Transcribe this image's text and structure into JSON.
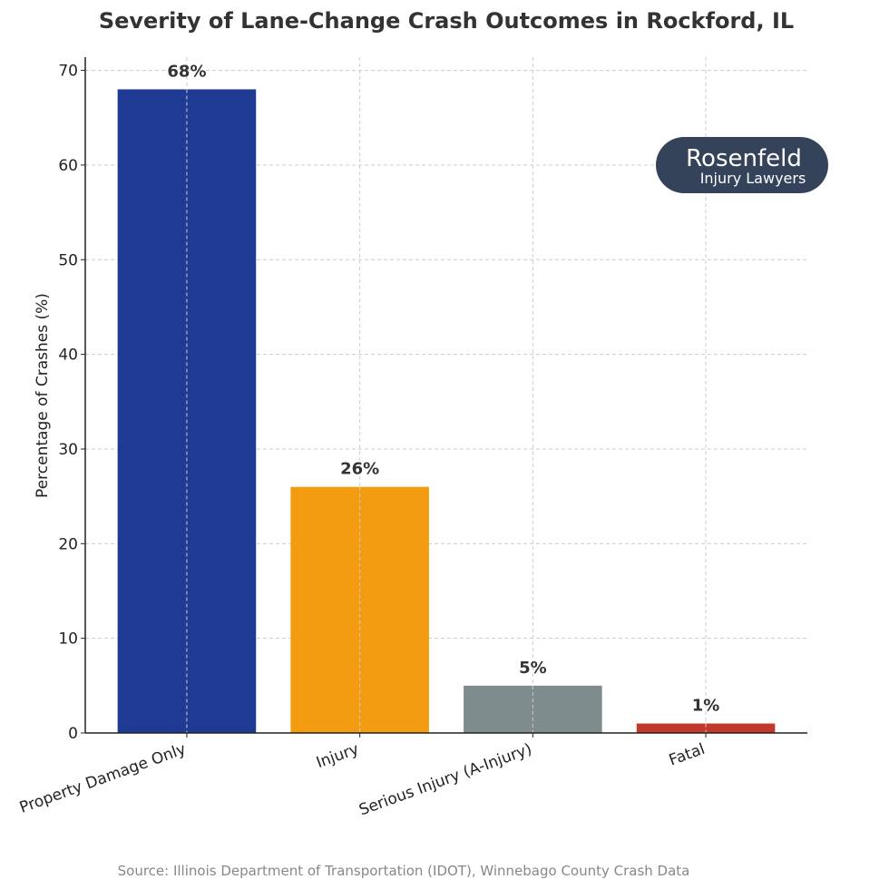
{
  "chart_data": {
    "type": "bar",
    "title": "Severity of Lane-Change Crash Outcomes in Rockford, IL",
    "xlabel": "",
    "ylabel": "Percentage of Crashes (%)",
    "categories": [
      "Property Damage Only",
      "Injury",
      "Serious Injury (A-Injury)",
      "Fatal"
    ],
    "values": [
      68,
      26,
      5,
      1
    ],
    "data_labels": [
      "68%",
      "26%",
      "5%",
      "1%"
    ],
    "colors": [
      "#1f3a93",
      "#f39c12",
      "#7f8c8d",
      "#c0392b"
    ],
    "ylim": [
      0,
      71.4
    ],
    "yticks": [
      0,
      10,
      20,
      30,
      40,
      50,
      60,
      70
    ],
    "grid": true,
    "source": "Source: Illinois Department of Transportation (IDOT), Winnebago County Crash Data"
  },
  "logo": {
    "line1": "Rosenfeld",
    "line2": "Injury Lawyers",
    "color": "#34425a"
  }
}
